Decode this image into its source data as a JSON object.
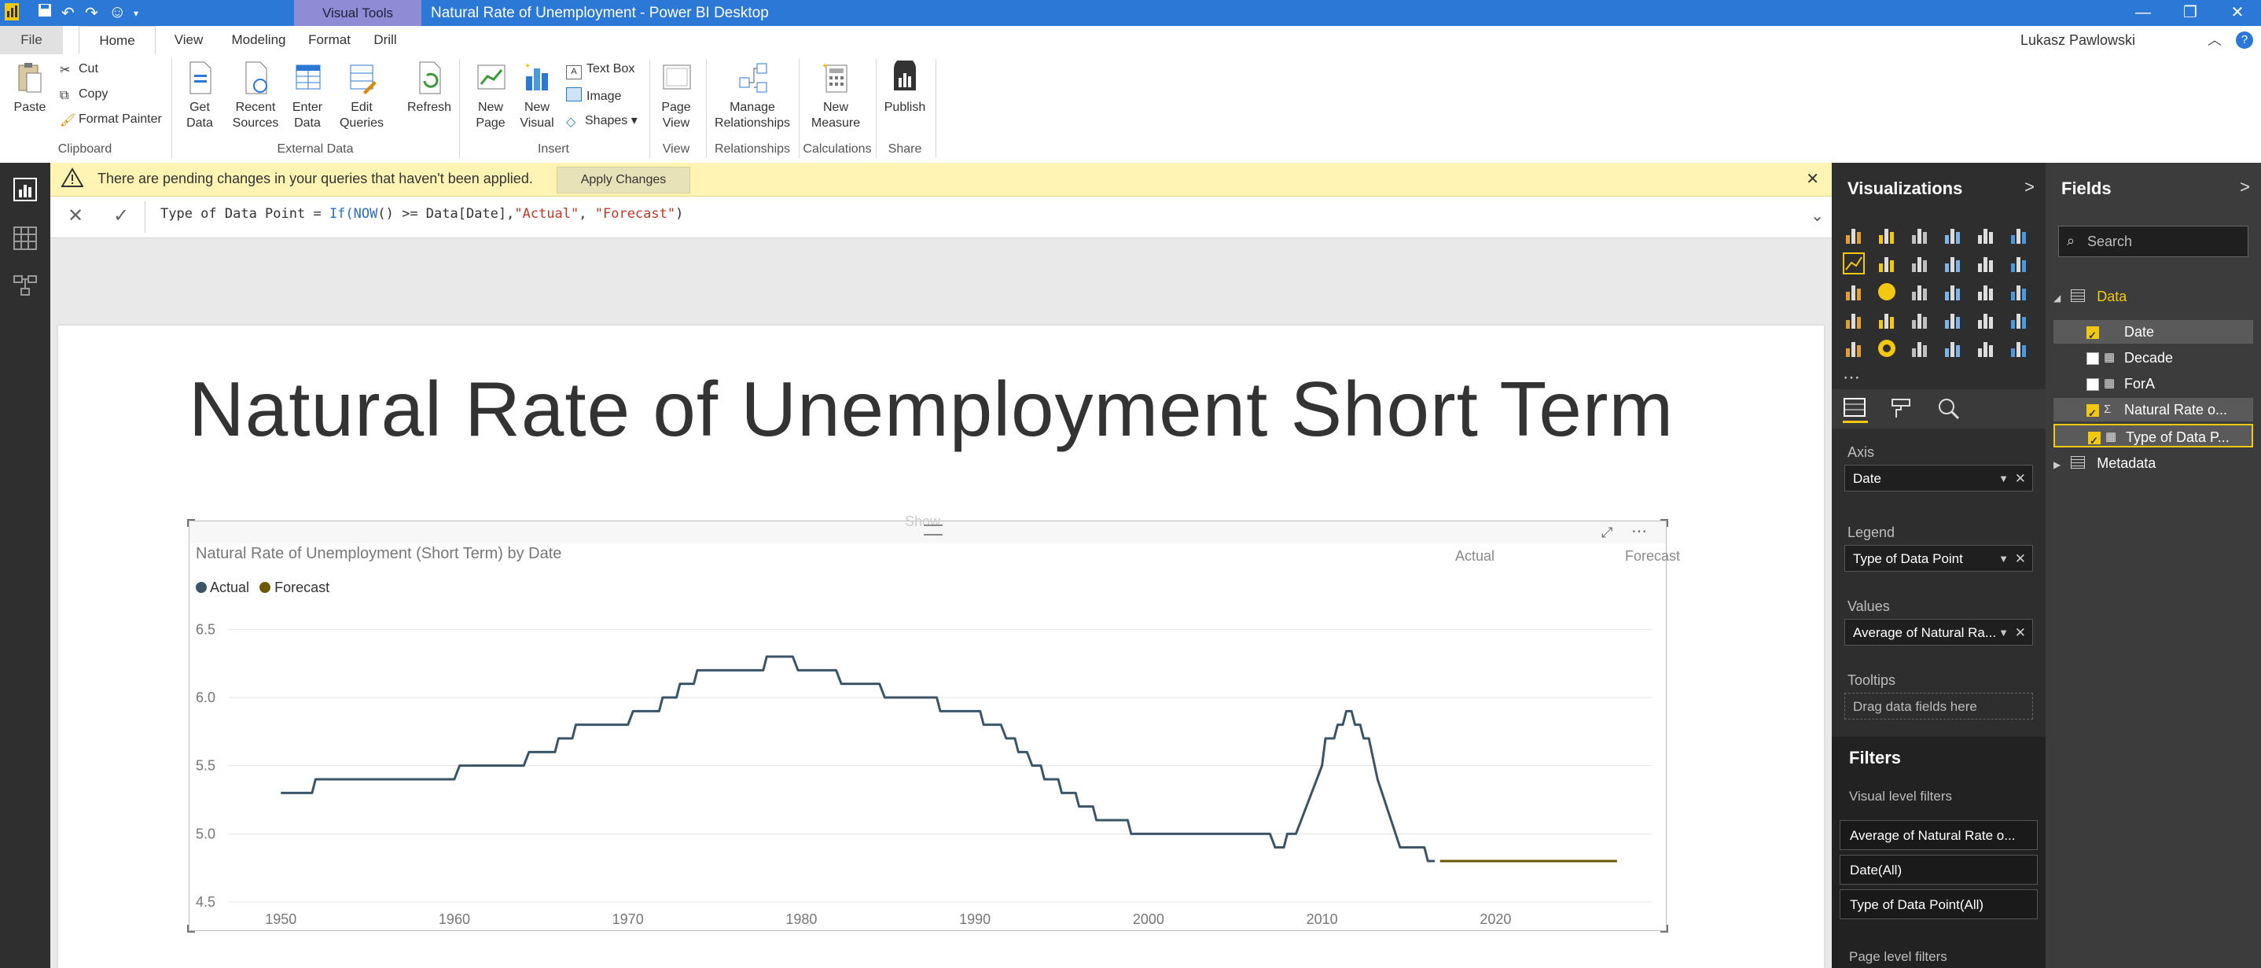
{
  "app": {
    "window_title": "Natural Rate of Unemployment - Power BI Desktop",
    "context_tab": "Visual Tools",
    "user": "Lukasz Pawlowski"
  },
  "tabs": [
    "File",
    "Home",
    "View",
    "Modeling",
    "Format",
    "Drill"
  ],
  "ribbon": {
    "clipboard": {
      "paste": "Paste",
      "cut": "Cut",
      "copy": "Copy",
      "format_painter": "Format Painter",
      "label": "Clipboard"
    },
    "external_data": {
      "get_data_1": "Get",
      "get_data_2": "Data",
      "recent_1": "Recent",
      "recent_2": "Sources",
      "enter_1": "Enter",
      "enter_2": "Data",
      "edit_1": "Edit",
      "edit_2": "Queries",
      "refresh": "Refresh",
      "label": "External Data"
    },
    "insert": {
      "new_page_1": "New",
      "new_page_2": "Page",
      "new_visual_1": "New",
      "new_visual_2": "Visual",
      "text_box": "Text Box",
      "image": "Image",
      "shapes": "Shapes",
      "label": "Insert"
    },
    "view": {
      "page_view_1": "Page",
      "page_view_2": "View",
      "label": "View"
    },
    "relationships": {
      "manage_1": "Manage",
      "manage_2": "Relationships",
      "label": "Relationships"
    },
    "calculations": {
      "new_measure_1": "New",
      "new_measure_2": "Measure",
      "label": "Calculations"
    },
    "share": {
      "publish": "Publish",
      "label": "Share"
    }
  },
  "warning": {
    "text": "There are pending changes in your queries that haven't been applied.",
    "button": "Apply Changes"
  },
  "formula": {
    "p1": "Type of Data Point = ",
    "p2": "If(",
    "p3": "NOW",
    "p4": "() >= Data[Date],",
    "p5": "\"Actual\"",
    "p6": ", ",
    "p7": "\"Forecast\"",
    "p8": ")"
  },
  "report": {
    "page_title": "Natural Rate of Unemployment Short Term",
    "visual_title": "Natural Rate of Unemployment (Short Term) by Date",
    "show_text": "Show",
    "annot_actual": "Actual",
    "annot_forecast": "Forecast"
  },
  "chart_data": {
    "type": "line",
    "title": "Natural Rate of Unemployment (Short Term) by Date",
    "xlabel": "",
    "ylabel": "",
    "xlim": [
      1947,
      2029
    ],
    "ylim": [
      4.5,
      6.6
    ],
    "x_ticks": [
      "1950",
      "1960",
      "1970",
      "1980",
      "1990",
      "2000",
      "2010",
      "2020"
    ],
    "y_ticks": [
      "6.5",
      "6.0",
      "5.5",
      "5.0",
      "4.5"
    ],
    "grid": true,
    "legend_position": "top-left",
    "series": [
      {
        "name": "Actual",
        "color": "#3b5566",
        "points": [
          [
            1950,
            5.3
          ],
          [
            1951.8,
            5.3
          ],
          [
            1952,
            5.4
          ],
          [
            1960,
            5.4
          ],
          [
            1960.3,
            5.5
          ],
          [
            1964,
            5.5
          ],
          [
            1964.3,
            5.6
          ],
          [
            1965.8,
            5.6
          ],
          [
            1966,
            5.7
          ],
          [
            1966.8,
            5.7
          ],
          [
            1967,
            5.8
          ],
          [
            1970,
            5.8
          ],
          [
            1970.3,
            5.9
          ],
          [
            1971.8,
            5.9
          ],
          [
            1972,
            6.0
          ],
          [
            1972.8,
            6.0
          ],
          [
            1973,
            6.1
          ],
          [
            1973.8,
            6.1
          ],
          [
            1974,
            6.2
          ],
          [
            1977.8,
            6.2
          ],
          [
            1978,
            6.3
          ],
          [
            1979.5,
            6.3
          ],
          [
            1979.8,
            6.2
          ],
          [
            1982,
            6.2
          ],
          [
            1982.3,
            6.1
          ],
          [
            1984.5,
            6.1
          ],
          [
            1984.8,
            6.0
          ],
          [
            1987.8,
            6.0
          ],
          [
            1988,
            5.9
          ],
          [
            1990.3,
            5.9
          ],
          [
            1990.5,
            5.8
          ],
          [
            1991.5,
            5.8
          ],
          [
            1991.8,
            5.7
          ],
          [
            1992.3,
            5.7
          ],
          [
            1992.5,
            5.6
          ],
          [
            1993,
            5.6
          ],
          [
            1993.3,
            5.5
          ],
          [
            1993.8,
            5.5
          ],
          [
            1994,
            5.4
          ],
          [
            1994.8,
            5.4
          ],
          [
            1995,
            5.3
          ],
          [
            1995.8,
            5.3
          ],
          [
            1996,
            5.2
          ],
          [
            1996.8,
            5.2
          ],
          [
            1997,
            5.1
          ],
          [
            1998.8,
            5.1
          ],
          [
            1999,
            5.0
          ],
          [
            2007,
            5.0
          ],
          [
            2007.3,
            4.9
          ],
          [
            2007.8,
            4.9
          ],
          [
            2008,
            5.0
          ],
          [
            2008.5,
            5.0
          ],
          [
            2010,
            5.5
          ],
          [
            2010.2,
            5.7
          ],
          [
            2010.7,
            5.7
          ],
          [
            2010.9,
            5.8
          ],
          [
            2011.2,
            5.8
          ],
          [
            2011.4,
            5.9
          ],
          [
            2011.7,
            5.9
          ],
          [
            2011.9,
            5.8
          ],
          [
            2012.2,
            5.8
          ],
          [
            2012.4,
            5.7
          ],
          [
            2012.7,
            5.7
          ],
          [
            2013.2,
            5.4
          ],
          [
            2014.5,
            4.9
          ],
          [
            2015.9,
            4.9
          ],
          [
            2016.1,
            4.8
          ],
          [
            2016.5,
            4.8
          ]
        ]
      },
      {
        "name": "Forecast",
        "color": "#6b5a00",
        "points": [
          [
            2016.8,
            4.8
          ],
          [
            2027,
            4.8
          ]
        ]
      }
    ]
  },
  "visualizations_pane": {
    "title": "Visualizations"
  },
  "fields_pane": {
    "title": "Fields",
    "search_placeholder": "Search",
    "table_name": "Data",
    "fields": [
      {
        "name": "Date",
        "checked": true
      },
      {
        "name": "Decade",
        "checked": false
      },
      {
        "name": "ForA",
        "checked": false
      },
      {
        "name": "Natural Rate o...",
        "checked": true
      },
      {
        "name": "Type of Data P...",
        "checked": true
      }
    ],
    "other_table": "Metadata"
  },
  "wells": {
    "axis_label": "Axis",
    "axis_value": "Date",
    "legend_label": "Legend",
    "legend_value": "Type of Data Point",
    "values_label": "Values",
    "values_value": "Average of Natural Ra...",
    "tooltips_label": "Tooltips",
    "tooltips_placeholder": "Drag data fields here"
  },
  "filters": {
    "title": "Filters",
    "visual_level": "Visual level filters",
    "items": [
      "Average of Natural Rate o...",
      "Date(All)",
      "Type of Data Point(All)"
    ],
    "page_level": "Page level filters"
  },
  "colors": {
    "accent": "#f2c811",
    "titlebar": "#2b78d7",
    "context_tab": "#8f8cd6"
  }
}
